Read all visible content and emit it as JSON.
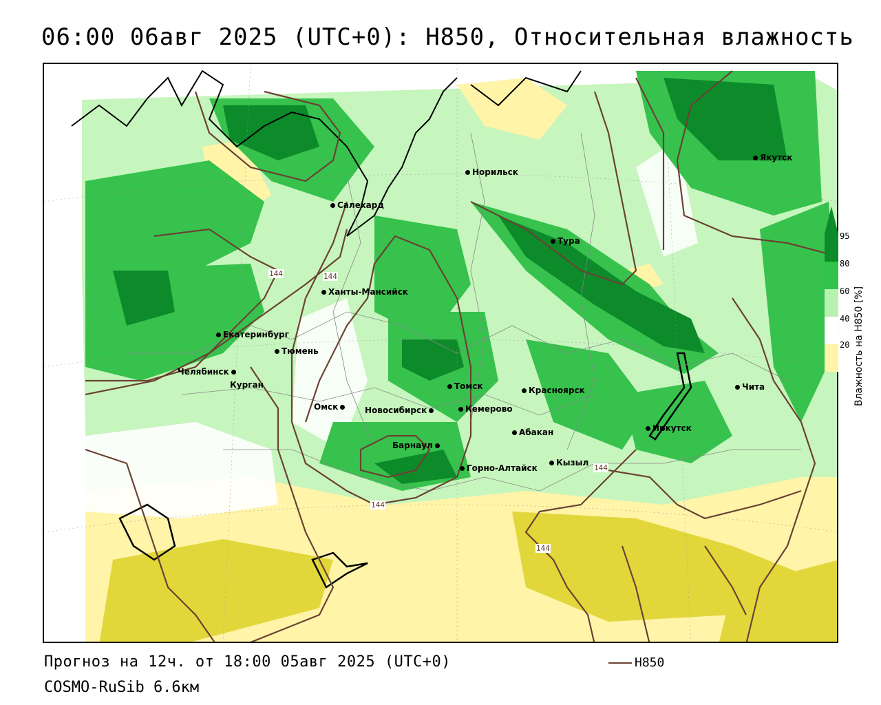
{
  "title": "06:00 06авг 2025 (UTC+0): H850, Относительная влажность",
  "footer": {
    "forecast": "Прогноз на 12ч. от 18:00 05авг 2025 (UTC+0)",
    "model": "COSMO-RuSib 6.6км",
    "contour_legend": "H850"
  },
  "legend": {
    "title": "Влажность на H850 [%]",
    "ticks": [
      "95",
      "80",
      "60",
      "40",
      "20"
    ],
    "colors": {
      "95": "#0d8a2a",
      "80": "#30c24a",
      "60": "#b8f2b0",
      "40": "#ffffff",
      "20": "#fff4a8",
      "low": "#d8cc2c"
    }
  },
  "contour_color": "#6b4233",
  "contour_labels": [
    "144",
    "144",
    "144",
    "144",
    "144"
  ],
  "cities": [
    {
      "name": "Якутск"
    },
    {
      "name": "Норильск"
    },
    {
      "name": "Салехард"
    },
    {
      "name": "Тура"
    },
    {
      "name": "Ханты-Мансийск"
    },
    {
      "name": "Екатеринбург"
    },
    {
      "name": "Тюмень"
    },
    {
      "name": "Челябинск"
    },
    {
      "name": "Курган"
    },
    {
      "name": "Омск"
    },
    {
      "name": "Новосибирск"
    },
    {
      "name": "Томск"
    },
    {
      "name": "Кемерово"
    },
    {
      "name": "Красноярск"
    },
    {
      "name": "Абакан"
    },
    {
      "name": "Барнаул"
    },
    {
      "name": "Горно-Алтайск"
    },
    {
      "name": "Кызыл"
    },
    {
      "name": "Иркутск"
    },
    {
      "name": "Чита"
    }
  ]
}
